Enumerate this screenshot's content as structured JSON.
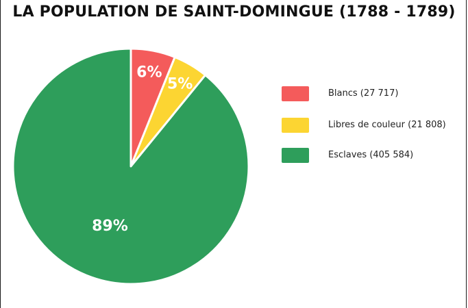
{
  "chart_data": {
    "type": "pie",
    "title": "LA POPULATION DE SAINT-DOMINGUE (1788 - 1789)",
    "slices": [
      {
        "label": "6%",
        "legend": " Blancs (27 717)",
        "value": 27717,
        "percent": 6,
        "color": "#f45b5b"
      },
      {
        "label": "5%",
        "legend": "Libres de couleur (21 808)",
        "value": 21808,
        "percent": 5,
        "color": "#fcd532"
      },
      {
        "label": "89%",
        "legend": "Esclaves (405 584)",
        "value": 405584,
        "percent": 89,
        "color": "#2e9e5b"
      }
    ],
    "legend_position": "right"
  }
}
